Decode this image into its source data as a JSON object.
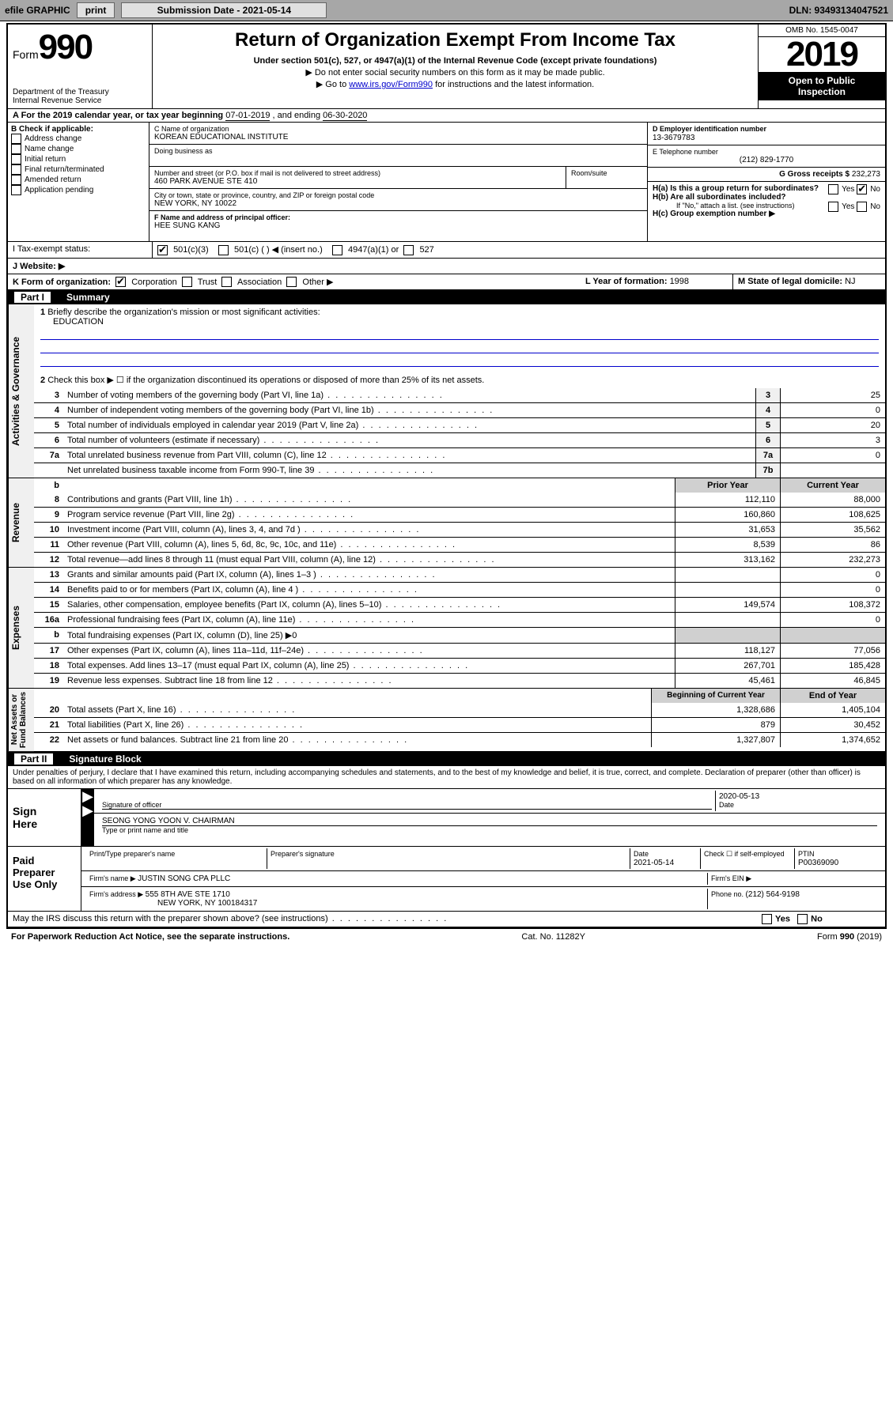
{
  "toolbar": {
    "efile": "efile GRAPHIC",
    "print": "print",
    "sub_label": "Submission Date - 2021-05-14",
    "dln": "DLN: 93493134047521"
  },
  "header": {
    "form_prefix": "Form",
    "form_no": "990",
    "dept": "Department of the Treasury\nInternal Revenue Service",
    "title": "Return of Organization Exempt From Income Tax",
    "sub1": "Under section 501(c), 527, or 4947(a)(1) of the Internal Revenue Code (except private foundations)",
    "sub2": "▶ Do not enter social security numbers on this form as it may be made public.",
    "sub3_pre": "▶ Go to ",
    "sub3_link": "www.irs.gov/Form990",
    "sub3_post": " for instructions and the latest information.",
    "omb": "OMB No. 1545-0047",
    "year": "2019",
    "inspect1": "Open to Public",
    "inspect2": "Inspection"
  },
  "rowA": {
    "label": "A   For the 2019 calendar year, or tax year beginning ",
    "begin": "07-01-2019",
    "mid": " , and ending ",
    "end": "06-30-2020"
  },
  "colB": {
    "header": "B Check if applicable:",
    "opts": [
      "Address change",
      "Name change",
      "Initial return",
      "Final return/terminated",
      "Amended return",
      "Application pending"
    ]
  },
  "colC": {
    "name_label": "C Name of organization",
    "name": "KOREAN EDUCATIONAL INSTITUTE",
    "dba_label": "Doing business as",
    "addr_label": "Number and street (or P.O. box if mail is not delivered to street address)",
    "room_label": "Room/suite",
    "addr": "460 PARK AVENUE STE 410",
    "city_label": "City or town, state or province, country, and ZIP or foreign postal code",
    "city": "NEW YORK, NY  10022",
    "f_label": "F  Name and address of principal officer:",
    "officer": "HEE SUNG KANG"
  },
  "colD": {
    "d_label": "D Employer identification number",
    "ein": "13-3679783",
    "e_label": "E Telephone number",
    "phone": "(212) 829-1770",
    "g_label": "G Gross receipts $ ",
    "g_val": "232,273"
  },
  "colH": {
    "ha": "H(a)  Is this a group return for subordinates?",
    "hb": "H(b)  Are all subordinates included?",
    "hb_note": "If \"No,\" attach a list. (see instructions)",
    "hc": "H(c)  Group exemption number ▶"
  },
  "rowI": {
    "label": "I     Tax-exempt status:",
    "c3": "501(c)(3)",
    "c": "501(c) (  ) ◀ (insert no.)",
    "a1": "4947(a)(1) or",
    "s527": "527"
  },
  "rowJ": {
    "label": "J     Website: ▶"
  },
  "rowK": {
    "label": "K Form of organization:",
    "opts": [
      "Corporation",
      "Trust",
      "Association",
      "Other ▶"
    ],
    "l_label": "L Year of formation: ",
    "l_val": "1998",
    "m_label": "M State of legal domicile: ",
    "m_val": "NJ"
  },
  "part1": {
    "tag": "Part I",
    "title": "Summary"
  },
  "p1": {
    "l1_label": "Briefly describe the organization's mission or most significant activities:",
    "l1_val": "EDUCATION",
    "l2": "Check this box ▶ ☐  if the organization discontinued its operations or disposed of more than 25% of its net assets.",
    "lines_gov": [
      {
        "n": "3",
        "t": "Number of voting members of the governing body (Part VI, line 1a)",
        "b": "3",
        "v": "25"
      },
      {
        "n": "4",
        "t": "Number of independent voting members of the governing body (Part VI, line 1b)",
        "b": "4",
        "v": "0"
      },
      {
        "n": "5",
        "t": "Total number of individuals employed in calendar year 2019 (Part V, line 2a)",
        "b": "5",
        "v": "20"
      },
      {
        "n": "6",
        "t": "Total number of volunteers (estimate if necessary)",
        "b": "6",
        "v": "3"
      },
      {
        "n": "7a",
        "t": "Total unrelated business revenue from Part VIII, column (C), line 12",
        "b": "7a",
        "v": "0"
      },
      {
        "n": "",
        "t": "Net unrelated business taxable income from Form 990-T, line 39",
        "b": "7b",
        "v": ""
      }
    ],
    "hdr_prior": "Prior Year",
    "hdr_curr": "Current Year",
    "rev": [
      {
        "n": "8",
        "t": "Contributions and grants (Part VIII, line 1h)",
        "p": "112,110",
        "c": "88,000"
      },
      {
        "n": "9",
        "t": "Program service revenue (Part VIII, line 2g)",
        "p": "160,860",
        "c": "108,625"
      },
      {
        "n": "10",
        "t": "Investment income (Part VIII, column (A), lines 3, 4, and 7d )",
        "p": "31,653",
        "c": "35,562"
      },
      {
        "n": "11",
        "t": "Other revenue (Part VIII, column (A), lines 5, 6d, 8c, 9c, 10c, and 11e)",
        "p": "8,539",
        "c": "86"
      },
      {
        "n": "12",
        "t": "Total revenue—add lines 8 through 11 (must equal Part VIII, column (A), line 12)",
        "p": "313,162",
        "c": "232,273"
      }
    ],
    "exp": [
      {
        "n": "13",
        "t": "Grants and similar amounts paid (Part IX, column (A), lines 1–3 )",
        "p": "",
        "c": "0"
      },
      {
        "n": "14",
        "t": "Benefits paid to or for members (Part IX, column (A), line 4 )",
        "p": "",
        "c": "0"
      },
      {
        "n": "15",
        "t": "Salaries, other compensation, employee benefits (Part IX, column (A), lines 5–10)",
        "p": "149,574",
        "c": "108,372"
      },
      {
        "n": "16a",
        "t": "Professional fundraising fees (Part IX, column (A), line 11e)",
        "p": "",
        "c": "0"
      },
      {
        "n": "b",
        "t": "Total fundraising expenses (Part IX, column (D), line 25) ▶0",
        "p": "—",
        "c": "—"
      },
      {
        "n": "17",
        "t": "Other expenses (Part IX, column (A), lines 11a–11d, 11f–24e)",
        "p": "118,127",
        "c": "77,056"
      },
      {
        "n": "18",
        "t": "Total expenses. Add lines 13–17 (must equal Part IX, column (A), line 25)",
        "p": "267,701",
        "c": "185,428"
      },
      {
        "n": "19",
        "t": "Revenue less expenses. Subtract line 18 from line 12",
        "p": "45,461",
        "c": "46,845"
      }
    ],
    "hdr_boy": "Beginning of Current Year",
    "hdr_eoy": "End of Year",
    "net": [
      {
        "n": "20",
        "t": "Total assets (Part X, line 16)",
        "p": "1,328,686",
        "c": "1,405,104"
      },
      {
        "n": "21",
        "t": "Total liabilities (Part X, line 26)",
        "p": "879",
        "c": "30,452"
      },
      {
        "n": "22",
        "t": "Net assets or fund balances. Subtract line 21 from line 20",
        "p": "1,327,807",
        "c": "1,374,652"
      }
    ]
  },
  "part2": {
    "tag": "Part II",
    "title": "Signature Block"
  },
  "perjury": "Under penalties of perjury, I declare that I have examined this return, including accompanying schedules and statements, and to the best of my knowledge and belief, it is true, correct, and complete. Declaration of preparer (other than officer) is based on all information of which preparer has any knowledge.",
  "sign": {
    "here": "Sign\nHere",
    "sig_officer_lbl": "Signature of officer",
    "date": "2020-05-13",
    "date_lbl": "Date",
    "name": "SEONG YONG YOON  V. CHAIRMAN",
    "name_lbl": "Type or print name and title"
  },
  "paid": {
    "here": "Paid\nPreparer\nUse Only",
    "h_name": "Print/Type preparer's name",
    "h_sig": "Preparer's signature",
    "h_date": "Date",
    "date": "2021-05-14",
    "h_check": "Check ☐ if self-employed",
    "h_ptin": "PTIN",
    "ptin": "P00369090",
    "firm_lbl": "Firm's name    ▶ ",
    "firm": "JUSTIN SONG CPA PLLC",
    "ein_lbl": "Firm's EIN ▶",
    "addr_lbl": "Firm's address ▶ ",
    "addr1": "555 8TH AVE STE 1710",
    "addr2": "NEW YORK, NY  100184317",
    "phone_lbl": "Phone no. ",
    "phone": "(212) 564-9198"
  },
  "discuss": "May the IRS discuss this return with the preparer shown above? (see instructions)",
  "footer": {
    "pra": "For Paperwork Reduction Act Notice, see the separate instructions.",
    "cat": "Cat. No. 11282Y",
    "form": "Form 990 (2019)"
  },
  "sides": {
    "gov": "Activities & Governance",
    "rev": "Revenue",
    "exp": "Expenses",
    "net": "Net Assets or\nFund Balances"
  },
  "yesno": {
    "yes": "Yes",
    "no": "No"
  }
}
